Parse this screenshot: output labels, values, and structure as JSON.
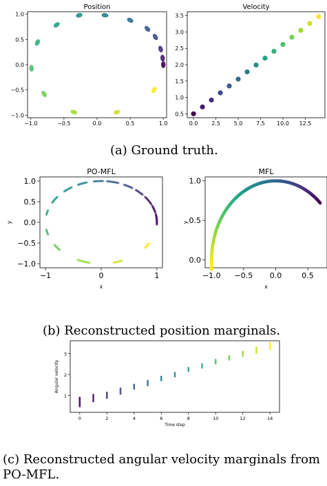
{
  "captions": {
    "a": "(a) Ground truth.",
    "b": "(b) Reconstructed position marginals.",
    "c": "(c) Reconstructed angular velocity marginals from PO-MFL."
  },
  "chart_data": [
    {
      "id": "gt_position",
      "type": "scatter",
      "title": "Position",
      "xlabel": "",
      "ylabel": "",
      "xlim": [
        -1.05,
        1.05
      ],
      "ylim": [
        -1.05,
        1.05
      ],
      "xticks": [
        "−1.0",
        "−0.5",
        "0.0",
        "0.5",
        "1.0"
      ],
      "yticks": [
        "−1.0",
        "−0.5",
        "0.0",
        "0.5",
        "1.0"
      ],
      "colormap": "viridis",
      "grid": false,
      "points": [
        {
          "t": 0,
          "x": 1.0,
          "y": 0.0
        },
        {
          "t": 1,
          "x": 0.99,
          "y": 0.13
        },
        {
          "t": 2,
          "x": 0.96,
          "y": 0.31
        },
        {
          "t": 3,
          "x": 0.88,
          "y": 0.55
        },
        {
          "t": 4,
          "x": 0.76,
          "y": 0.71
        },
        {
          "t": 5,
          "x": 0.5,
          "y": 0.88
        },
        {
          "t": 6,
          "x": 0.12,
          "y": 0.98
        },
        {
          "t": 7,
          "x": -0.27,
          "y": 0.98
        },
        {
          "t": 8,
          "x": -0.61,
          "y": 0.79
        },
        {
          "t": 9,
          "x": -0.9,
          "y": 0.44
        },
        {
          "t": 10,
          "x": -0.99,
          "y": -0.07
        },
        {
          "t": 11,
          "x": -0.8,
          "y": -0.58
        },
        {
          "t": 12,
          "x": -0.35,
          "y": -0.94
        },
        {
          "t": 13,
          "x": 0.3,
          "y": -0.94
        },
        {
          "t": 14,
          "x": 0.86,
          "y": -0.5
        }
      ]
    },
    {
      "id": "gt_velocity",
      "type": "scatter",
      "title": "Velocity",
      "xlabel": "",
      "ylabel": "",
      "xlim": [
        -0.7,
        14.7
      ],
      "ylim": [
        0.38,
        3.62
      ],
      "xticks": [
        "0.0",
        "2.5",
        "5.0",
        "7.5",
        "10.0",
        "12.5"
      ],
      "yticks": [
        "0.5",
        "1.0",
        "1.5",
        "2.0",
        "2.5",
        "3.0",
        "3.5"
      ],
      "colormap": "viridis",
      "x": [
        0,
        1,
        2,
        3,
        4,
        5,
        6,
        7,
        8,
        9,
        10,
        11,
        12,
        13,
        14
      ],
      "y": [
        0.5,
        0.71,
        0.92,
        1.14,
        1.35,
        1.56,
        1.78,
        1.99,
        2.2,
        2.41,
        2.62,
        2.84,
        3.05,
        3.26,
        3.47
      ]
    },
    {
      "id": "pomfl_position",
      "type": "scatter",
      "title": "PO-MFL",
      "xlabel": "x",
      "ylabel": "y",
      "xlim": [
        -1.1,
        1.1
      ],
      "ylim": [
        -1.1,
        1.1
      ],
      "xticks": [
        "−1",
        "0",
        "1"
      ],
      "yticks": [
        "1.0",
        "0.5",
        "0.0",
        "−0.5",
        "−1.0"
      ],
      "colormap": "viridis",
      "grid": false,
      "marginal": "arc segments around the unit circle, dark near angle 0 fading to yellow at angle ~300°"
    },
    {
      "id": "mfl_position",
      "type": "scatter",
      "title": "MFL",
      "xlabel": "x",
      "ylabel": "y",
      "xlim": [
        -1.1,
        0.8
      ],
      "ylim": [
        -0.1,
        1.05
      ],
      "xticks": [
        "−1.0",
        "−0.5",
        "0.0",
        "0.5"
      ],
      "yticks": [
        "1.0",
        "0.5",
        "0.0"
      ],
      "colormap": "viridis",
      "grid": false,
      "marginal": "continuous upper arc from (0.7, 0.72) counter-clockwise to (-1.0, -0.05)"
    },
    {
      "id": "pomfl_velocity",
      "type": "scatter",
      "title": "",
      "xlabel": "Time step",
      "ylabel": "Angular velocity",
      "xlim": [
        -0.7,
        14.7
      ],
      "ylim": [
        0.2,
        3.6
      ],
      "xticks": [
        "0",
        "2",
        "4",
        "6",
        "8",
        "10",
        "12",
        "14"
      ],
      "yticks": [
        "1",
        "2",
        "3"
      ],
      "colormap": "viridis",
      "x": [
        0,
        1,
        2,
        3,
        4,
        5,
        6,
        7,
        8,
        9,
        10,
        11,
        12,
        13,
        14
      ],
      "y_low": [
        0.48,
        0.72,
        0.88,
        1.08,
        1.32,
        1.48,
        1.72,
        1.9,
        2.16,
        2.32,
        2.52,
        2.7,
        2.86,
        3.02,
        3.2
      ],
      "y_high": [
        0.9,
        1.04,
        1.14,
        1.34,
        1.52,
        1.7,
        1.9,
        2.08,
        2.32,
        2.5,
        2.7,
        2.88,
        3.08,
        3.28,
        3.5
      ]
    }
  ]
}
